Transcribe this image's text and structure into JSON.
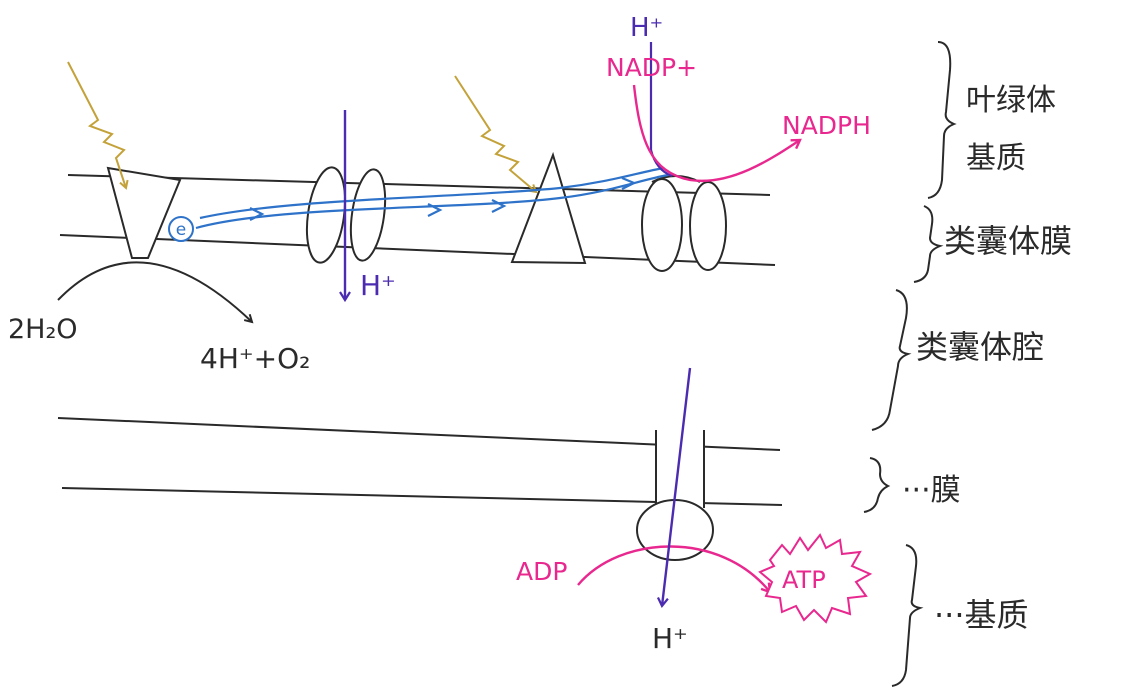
{
  "colors": {
    "ink": "#2a2a2a",
    "light": "#c4a23a",
    "electron": "#2e73c9",
    "proton": "#4b2bb0",
    "nadp": "#e8288f"
  },
  "labels": {
    "h2o": "2H₂O",
    "products": "4H⁺+O₂",
    "electron": "e",
    "h_cyt": "H⁺",
    "h_top": "H⁺",
    "nadp_plus": "NADP+",
    "nadph": "NADPH",
    "adp": "ADP",
    "atp": "ATP",
    "h_bottom": "H⁺"
  },
  "braces": {
    "stroma_top": "叶绿体\n基质",
    "thylakoid_membrane": "类囊体膜",
    "thylakoid_lumen": "类囊体腔",
    "membrane": "···膜",
    "stroma_bottom": "···基质"
  }
}
